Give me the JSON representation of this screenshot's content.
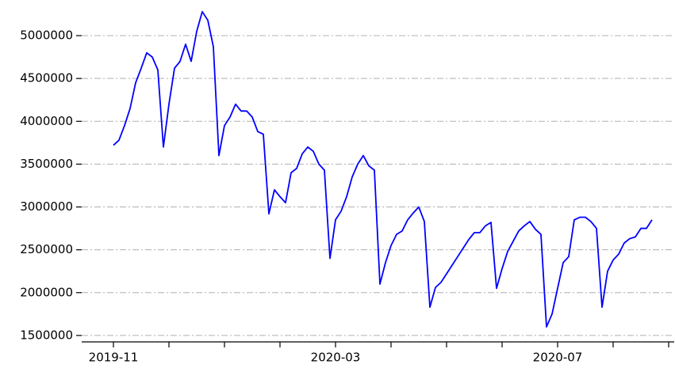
{
  "chart_data": {
    "type": "line",
    "categories": [
      "2019-11",
      null,
      null,
      null,
      null,
      null,
      null,
      null,
      null,
      null,
      null,
      null,
      null,
      null,
      null,
      null,
      null,
      null,
      null,
      null,
      null,
      null,
      null,
      null,
      null,
      null,
      null,
      null,
      null,
      null,
      null,
      null,
      null,
      null,
      null,
      null,
      null,
      null,
      null,
      null,
      "2020-03",
      null,
      null,
      null,
      null,
      null,
      null,
      null,
      null,
      null,
      null,
      null,
      null,
      null,
      null,
      null,
      null,
      null,
      null,
      null,
      null,
      null,
      null,
      null,
      null,
      null,
      null,
      null,
      null,
      null,
      null,
      null,
      null,
      null,
      null,
      null,
      null,
      null,
      null,
      null,
      "2020-07",
      null,
      null,
      null,
      null,
      null,
      null,
      null,
      null,
      null,
      null,
      null,
      null,
      null,
      null,
      null,
      null,
      null
    ],
    "series": [
      {
        "color": "#0000ff",
        "values": [
          3720000,
          3780000,
          3950000,
          4150000,
          4450000,
          4620000,
          4800000,
          4750000,
          4600000,
          3700000,
          4200000,
          4620000,
          4700000,
          4900000,
          4700000,
          5050000,
          5280000,
          5180000,
          4870000,
          3600000,
          3950000,
          4050000,
          4200000,
          4120000,
          4120000,
          4050000,
          3880000,
          3850000,
          2920000,
          3200000,
          3120000,
          3050000,
          3400000,
          3450000,
          3620000,
          3700000,
          3650000,
          3500000,
          3430000,
          2400000,
          2850000,
          2950000,
          3120000,
          3350000,
          3500000,
          3600000,
          3480000,
          3430000,
          2100000,
          2350000,
          2550000,
          2680000,
          2720000,
          2850000,
          2930000,
          3000000,
          2830000,
          1830000,
          2060000,
          2120000,
          2220000,
          2320000,
          2420000,
          2520000,
          2620000,
          2700000,
          2700000,
          2780000,
          2820000,
          2050000,
          2280000,
          2480000,
          2600000,
          2720000,
          2780000,
          2830000,
          2740000,
          2680000,
          1600000,
          1750000,
          2050000,
          2350000,
          2420000,
          2850000,
          2880000,
          2880000,
          2830000,
          2750000,
          1830000,
          2250000,
          2380000,
          2450000,
          2580000,
          2630000,
          2650000,
          2750000,
          2750000,
          2850000
        ]
      }
    ],
    "ylim": [
      1425000,
      5370000
    ],
    "yticks": [
      1500000,
      2000000,
      2500000,
      3000000,
      3500000,
      4000000,
      4500000,
      5000000
    ],
    "grid": true
  }
}
